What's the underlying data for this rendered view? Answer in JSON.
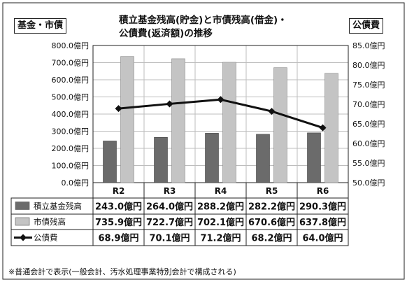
{
  "header": {
    "left_axis_label": "基金・市債",
    "right_axis_label": "公債費",
    "title_line1": "積立基金残高(貯金)と市債残高(借金)・",
    "title_line2": "公債費(返済額)の推移"
  },
  "footnote": "※普通会計で表示(一般会計、汚水処理事業特別会計で構成される)",
  "colors": {
    "fund_bar": "#6b6b6b",
    "bond_bar": "#c4c4c4",
    "line": "#111111",
    "grid": "#bdbdbd"
  },
  "chart_data": {
    "type": "bar",
    "categories": [
      "R2",
      "R3",
      "R4",
      "R5",
      "R6"
    ],
    "left_axis": {
      "ylim": [
        0,
        800
      ],
      "ticks": [
        "0.0億円",
        "100.0億円",
        "200.0億円",
        "300.0億円",
        "400.0億円",
        "500.0億円",
        "600.0億円",
        "700.0億円",
        "800.0億円"
      ]
    },
    "right_axis": {
      "ylim": [
        50,
        85
      ],
      "ticks": [
        "50.0億円",
        "55.0億円",
        "60.0億円",
        "65.0億円",
        "70.0億円",
        "75.0億円",
        "80.0億円",
        "85.0億円"
      ]
    },
    "series": [
      {
        "name": "積立基金残高",
        "type": "bar",
        "axis": "left",
        "values": [
          243.0,
          264.0,
          288.2,
          282.2,
          290.3
        ],
        "labels": [
          "243.0億円",
          "264.0億円",
          "288.2億円",
          "282.2億円",
          "290.3億円"
        ]
      },
      {
        "name": "市債残高",
        "type": "bar",
        "axis": "left",
        "values": [
          735.9,
          722.7,
          702.1,
          670.6,
          637.8
        ],
        "labels": [
          "735.9億円",
          "722.7億円",
          "702.1億円",
          "670.6億円",
          "637.8億円"
        ]
      },
      {
        "name": "公債費",
        "type": "line",
        "axis": "right",
        "values": [
          68.9,
          70.1,
          71.2,
          68.2,
          64.0
        ],
        "labels": [
          "68.9億円",
          "70.1億円",
          "71.2億円",
          "68.2億円",
          "64.0億円"
        ]
      }
    ],
    "grid": true,
    "legend": "table-left"
  }
}
